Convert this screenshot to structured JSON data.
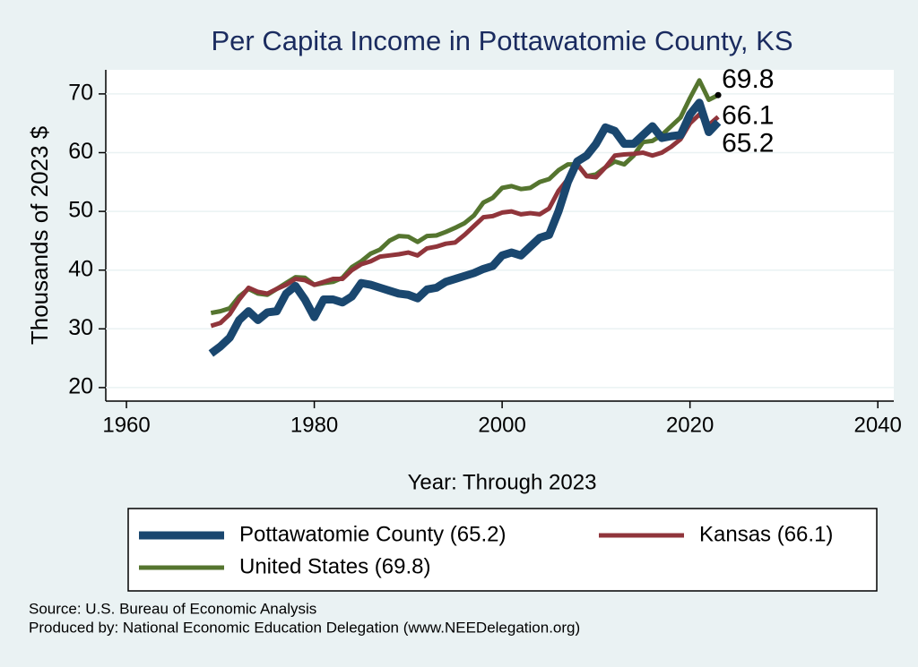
{
  "chart_data": {
    "type": "line",
    "title": "Per Capita Income in Pottawatomie County, KS",
    "x_label": "Year: Through 2023",
    "y_label": "Thousands of 2023 $",
    "x": [
      1969,
      1970,
      1971,
      1972,
      1973,
      1974,
      1975,
      1976,
      1977,
      1978,
      1979,
      1980,
      1981,
      1982,
      1983,
      1984,
      1985,
      1986,
      1987,
      1988,
      1989,
      1990,
      1991,
      1992,
      1993,
      1994,
      1995,
      1996,
      1997,
      1998,
      1999,
      2000,
      2001,
      2002,
      2003,
      2004,
      2005,
      2006,
      2007,
      2008,
      2009,
      2010,
      2011,
      2012,
      2013,
      2014,
      2015,
      2016,
      2017,
      2018,
      2019,
      2020,
      2021,
      2022,
      2023
    ],
    "series": [
      {
        "name": "Pottawatomie County (65.2)",
        "color": "#1a476f",
        "width": 9,
        "values": [
          25.8,
          27,
          28.5,
          31.5,
          33,
          31.5,
          32.8,
          33,
          36,
          37.3,
          35,
          32,
          35,
          35,
          34.5,
          35.5,
          37.8,
          37.5,
          37,
          36.5,
          36,
          35.8,
          35.2,
          36.7,
          37,
          38,
          38.5,
          39,
          39.5,
          40.2,
          40.7,
          42.5,
          43,
          42.5,
          44,
          45.5,
          46,
          50,
          55,
          58.5,
          59.5,
          61.5,
          64.3,
          63.7,
          61.5,
          61.5,
          63,
          64.5,
          62.5,
          62.8,
          63,
          66.5,
          68.5,
          63.5,
          65.2
        ]
      },
      {
        "name": "Kansas (66.1)",
        "color": "#90353b",
        "width": 5,
        "values": [
          30.5,
          31,
          32.5,
          35,
          37,
          36.3,
          36,
          36.8,
          37.5,
          38.5,
          38.3,
          37.5,
          38,
          38.5,
          38.5,
          40,
          41,
          41.5,
          42.3,
          42.5,
          42.7,
          43,
          42.5,
          43.7,
          44,
          44.5,
          44.7,
          46,
          47.5,
          49,
          49.2,
          49.8,
          50,
          49.5,
          49.7,
          49.5,
          50.5,
          53.5,
          55.5,
          58,
          56,
          55.8,
          57.5,
          59.5,
          59.7,
          59.8,
          60,
          59.5,
          60,
          61,
          62.3,
          65,
          66.5,
          64.7,
          66.1
        ]
      },
      {
        "name": "United States (69.8)",
        "color": "#55752f",
        "width": 5,
        "values": [
          32.7,
          33,
          33.5,
          35.5,
          36.8,
          36,
          35.8,
          36.8,
          37.8,
          38.8,
          38.7,
          37.5,
          37.8,
          38,
          38.7,
          40.5,
          41.5,
          42.8,
          43.5,
          45,
          45.8,
          45.7,
          44.8,
          45.8,
          45.9,
          46.5,
          47.2,
          48,
          49.3,
          51.5,
          52.3,
          54,
          54.3,
          53.8,
          54,
          55,
          55.5,
          57,
          58,
          58,
          56,
          56.3,
          57.5,
          58.5,
          58,
          59.5,
          61.8,
          62,
          63,
          64.5,
          66,
          69.3,
          72.3,
          69,
          69.8
        ]
      }
    ],
    "xlim": [
      1957.8,
      2041.7
    ],
    "xticks": [
      1960,
      1980,
      2000,
      2020,
      2040
    ],
    "ylim": [
      17.7,
      74.1
    ],
    "yticks": [
      20,
      30,
      40,
      50,
      60,
      70
    ],
    "grid": true,
    "source": [
      "Source: U.S. Bureau of Economic Analysis",
      "Produced by: National Economic Education Delegation (www.NEEDelegation.org)"
    ]
  }
}
